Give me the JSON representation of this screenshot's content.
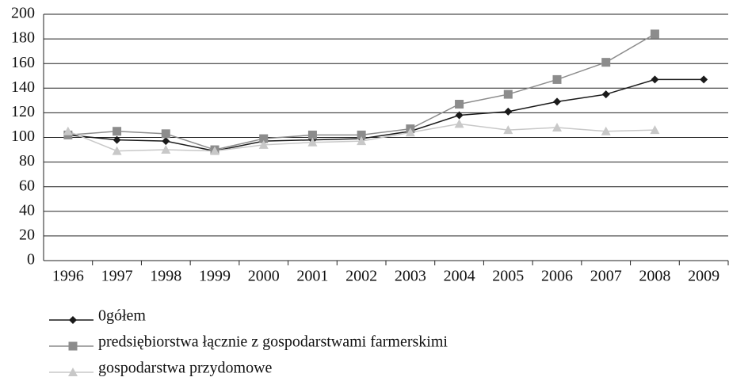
{
  "chart_data": {
    "type": "line",
    "categories": [
      "1996",
      "1997",
      "1998",
      "1999",
      "2000",
      "2001",
      "2002",
      "2003",
      "2004",
      "2005",
      "2006",
      "2007",
      "2008",
      "2009"
    ],
    "series": [
      {
        "name": "0gółem",
        "color": "#1a1a1a",
        "marker": "diamond",
        "values": [
          102,
          98,
          97,
          89,
          97,
          98,
          99,
          105,
          118,
          121,
          129,
          135,
          147,
          147
        ]
      },
      {
        "name": "predsiębiorstwa łącznie z gospodarstwami farmerskimi",
        "color": "#8c8c8c",
        "marker": "square",
        "values": [
          102,
          105,
          103,
          90,
          99,
          102,
          102,
          107,
          127,
          135,
          147,
          161,
          184,
          null
        ]
      },
      {
        "name": "gospodarstwa przydomowe",
        "color": "#c8c8c8",
        "marker": "triangle",
        "values": [
          105,
          89,
          90,
          89,
          94,
          96,
          97,
          104,
          111,
          106,
          108,
          105,
          106,
          null
        ]
      }
    ],
    "ylim": [
      0,
      200
    ],
    "yticks": [
      0,
      20,
      40,
      60,
      80,
      100,
      120,
      140,
      160,
      180,
      200
    ],
    "grid": true
  }
}
